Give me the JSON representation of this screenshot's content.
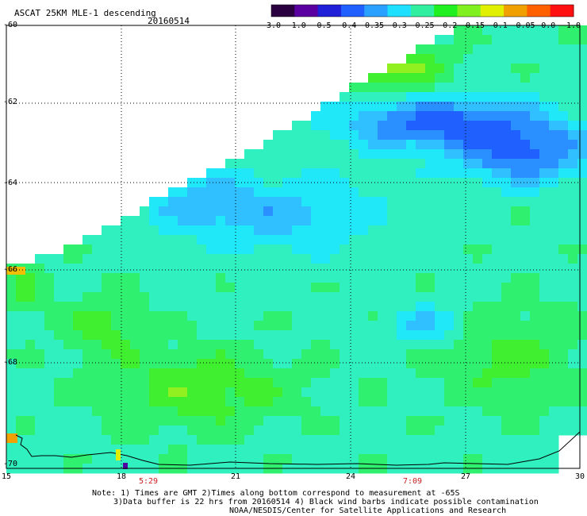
{
  "header": {
    "title": "ASCAT 25KM MLE-1 descending",
    "date": "20160514"
  },
  "colorbar": {
    "labels": [
      "-3.0",
      "-1.0",
      "-0.5",
      "-0.4",
      "-0.35",
      "-0.3",
      "-0.25",
      "-0.2",
      "-0.15",
      "-0.1",
      "-0.05",
      "0.0",
      "1.0"
    ],
    "colors": [
      "#2a0040",
      "#5a00a0",
      "#2020d8",
      "#2060ff",
      "#2aa0ff",
      "#20e0ff",
      "#30f0a0",
      "#20f020",
      "#80f020",
      "#e0f000",
      "#f0a000",
      "#ff6000",
      "#ff1010"
    ]
  },
  "map": {
    "lat_labels": [
      "-60",
      "-62",
      "-64",
      "-66",
      "-68",
      "-70"
    ],
    "lon_labels": [
      "15",
      "18",
      "21",
      "24",
      "27",
      "30"
    ],
    "time_labels": [
      "5:29",
      "7:09"
    ],
    "land_color": "#ffffff",
    "coast_color": "#000000",
    "grid_style": "dotted"
  },
  "notes": {
    "line1": "Note: 1) Times are GMT 2)Times along bottom correspond to measurement at -65S",
    "line2": "3)Data buffer is 22 hrs from 20160514 4) Black wind barbs indicate possible contamination",
    "line3": "NOAA/NESDIS/Center for Satellite Applications and Research"
  }
}
